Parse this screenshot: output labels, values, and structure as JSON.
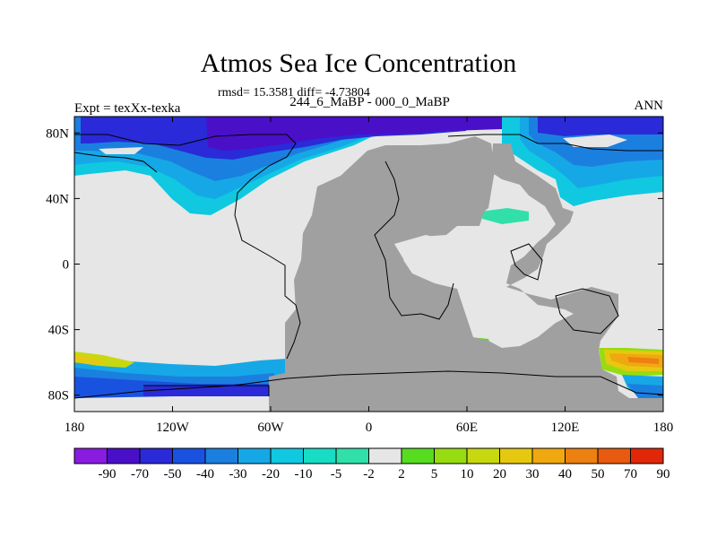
{
  "title": "Atmos Sea Ice Concentration",
  "stats": "rmsd= 15.3581 diff= -4.73804",
  "subtitle": "244_6_MaBP - 000_0_MaBP",
  "left_label": "Expt = texXx-texka",
  "right_label": "ANN",
  "chart_data": {
    "type": "heatmap",
    "x_ticks": [
      "180",
      "120W",
      "60W",
      "0",
      "60E",
      "120E",
      "180"
    ],
    "y_ticks": [
      "80N",
      "40N",
      "0",
      "40S",
      "80S"
    ],
    "xlim": [
      -180,
      180
    ],
    "ylim": [
      -90,
      90
    ],
    "colorbar": {
      "labels": [
        "-90",
        "-70",
        "-50",
        "-40",
        "-30",
        "-20",
        "-10",
        "-5",
        "-2",
        "2",
        "5",
        "10",
        "20",
        "30",
        "40",
        "50",
        "70",
        "90"
      ],
      "colors": [
        "#8a1be0",
        "#4a10c8",
        "#2a2ad8",
        "#1a52e0",
        "#1b7fe0",
        "#16a8e6",
        "#10c8e0",
        "#18dcc4",
        "#30e0a8",
        "#e6e6e6",
        "#58dc20",
        "#96dc10",
        "#c8d810",
        "#e6c810",
        "#f0a810",
        "#ec8010",
        "#e85a10",
        "#e02808"
      ]
    },
    "colors": {
      "land": "#a0a0a0",
      "nochange": "#e6e6e6",
      "coast": "#000000"
    }
  }
}
